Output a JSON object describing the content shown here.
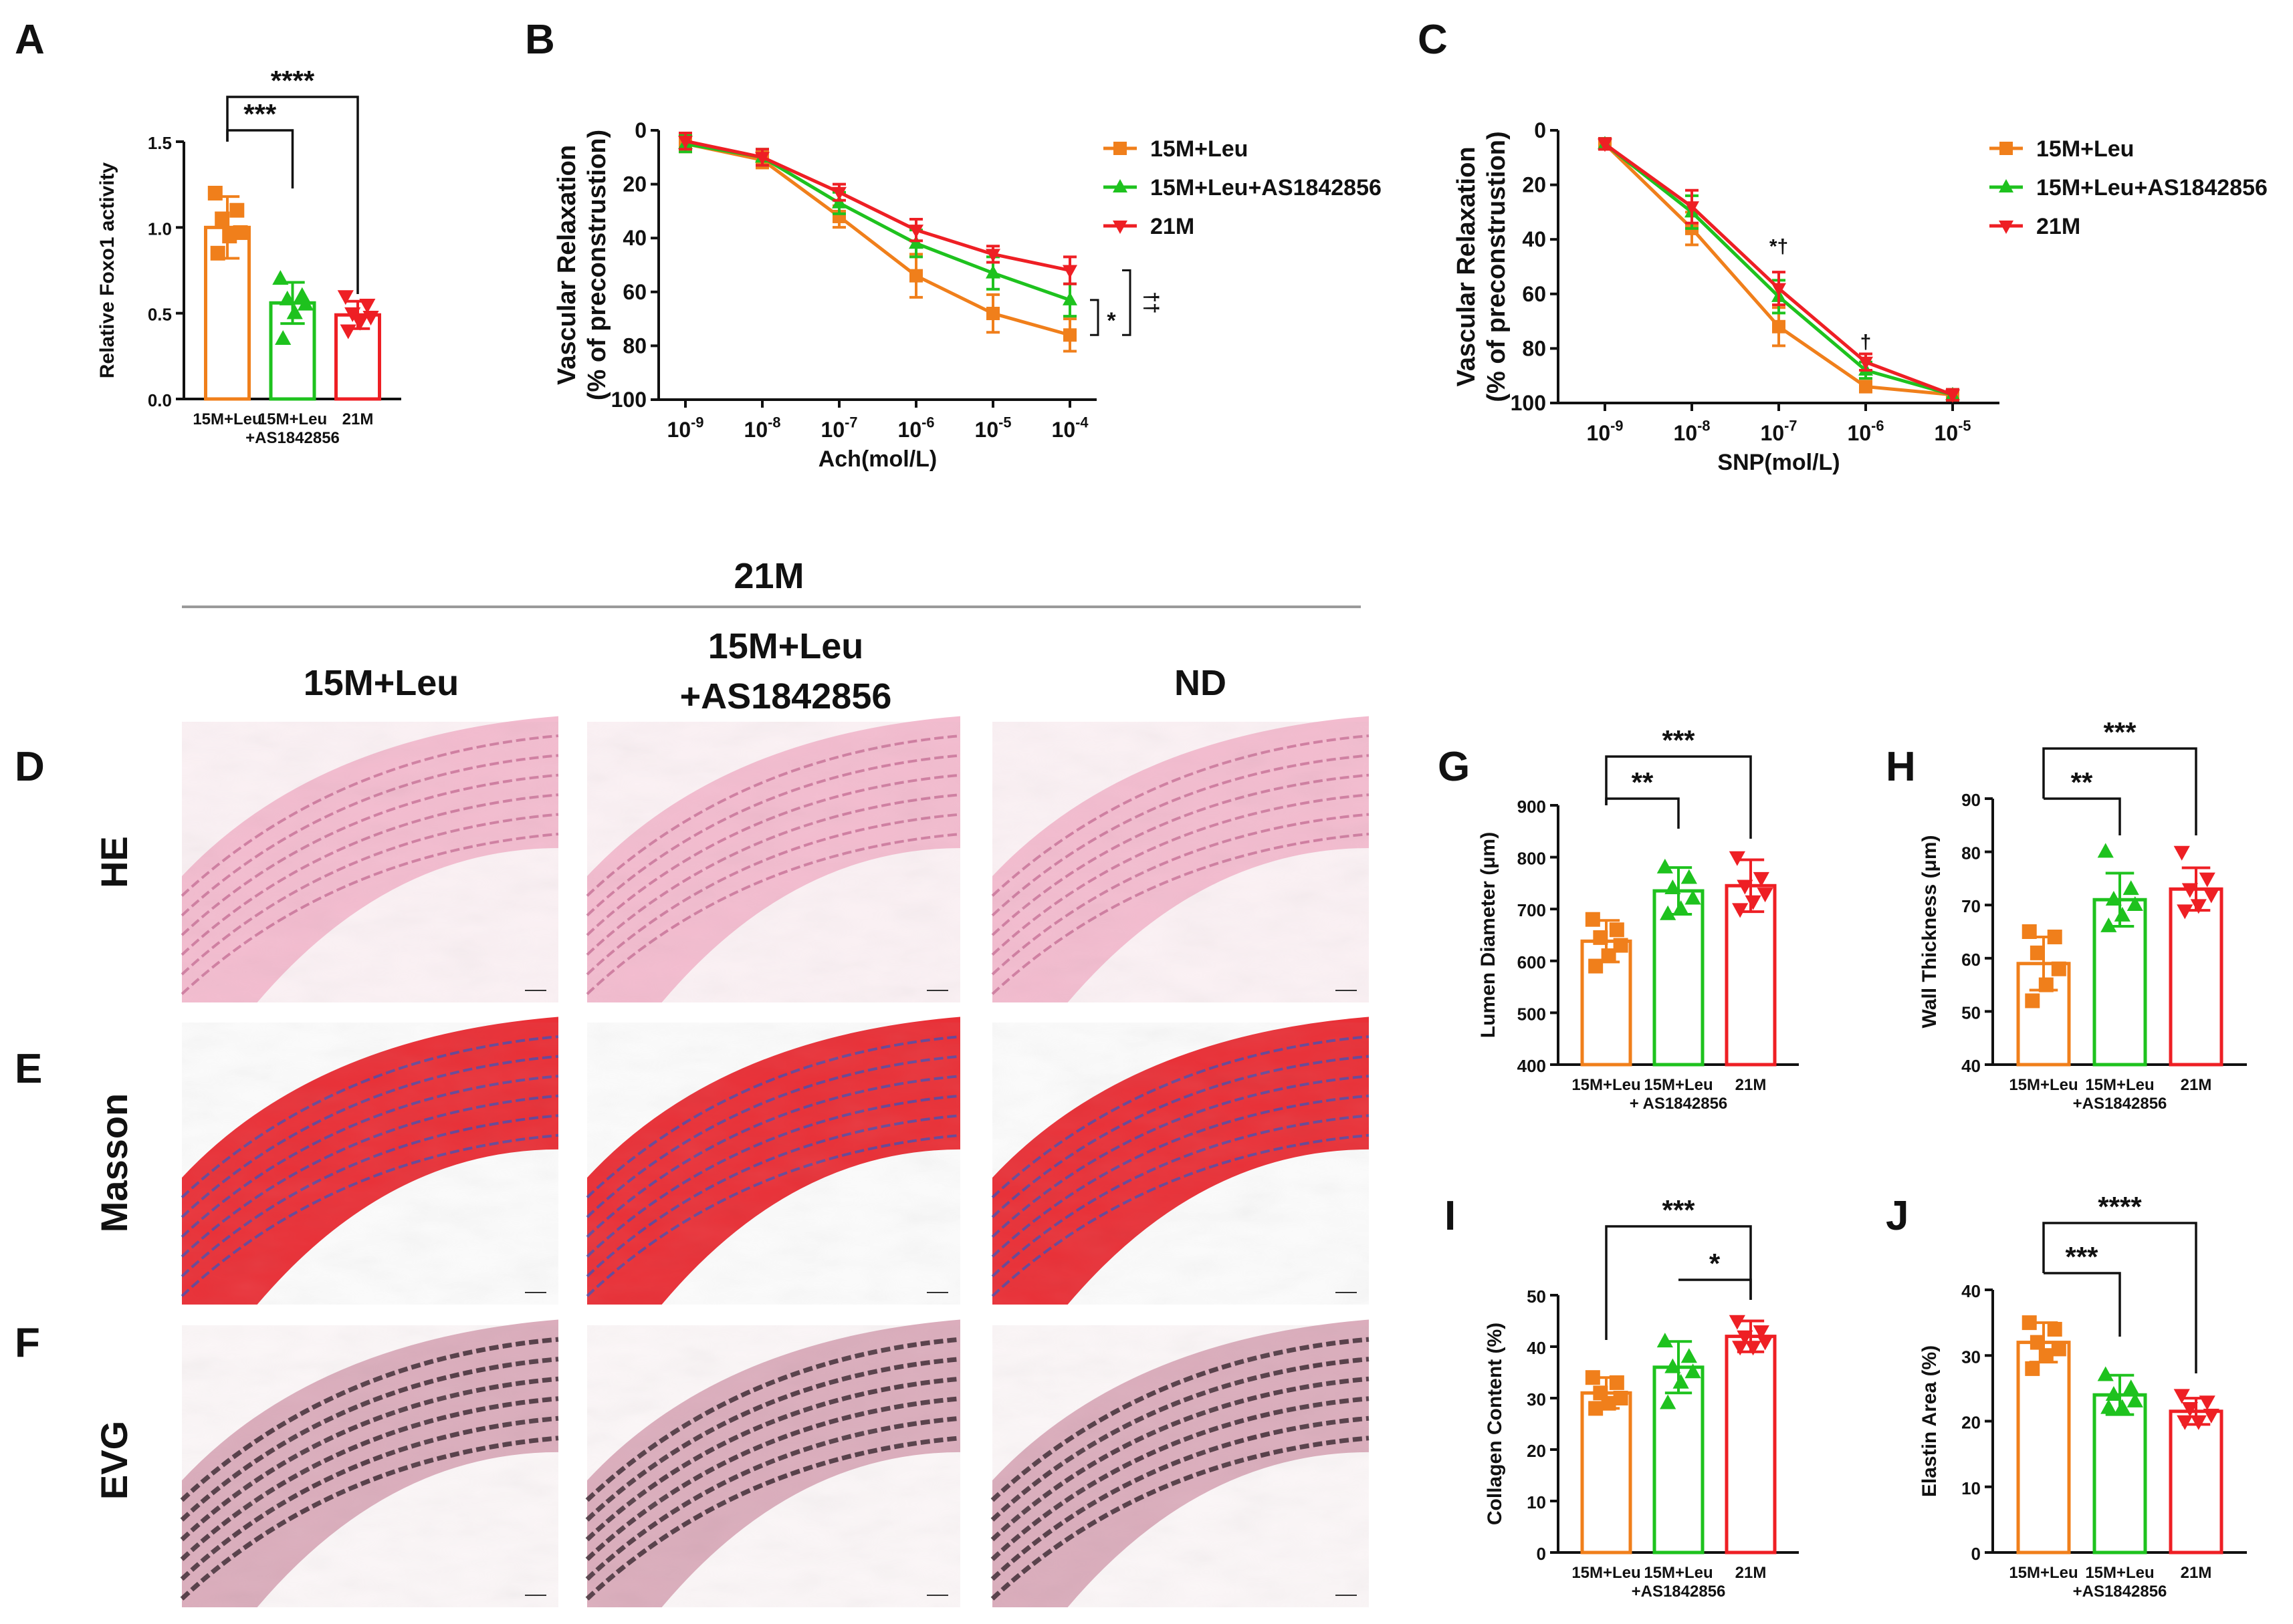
{
  "colors": {
    "orange": "#F07F1B",
    "green": "#1EC21E",
    "red": "#EE1F24",
    "axis": "#111111",
    "gray": "#9a9a9a"
  },
  "panels": {
    "A": "A",
    "B": "B",
    "C": "C",
    "D": "D",
    "E": "E",
    "F": "F",
    "G": "G",
    "H": "H",
    "I": "I",
    "J": "J"
  },
  "histology": {
    "group_header": "21M",
    "col1": "15M+Leu",
    "col2_line1": "15M+Leu",
    "col2_line2": "+AS1842856",
    "col3": "ND",
    "row1": "HE",
    "row2": "Masson",
    "row3": "EVG"
  },
  "chart_data": [
    {
      "id": "A",
      "type": "bar",
      "ylabel": "Relative Foxo1 activity",
      "ylim": [
        0,
        1.5
      ],
      "yticks": [
        "0.0",
        "0.5",
        "1.0",
        "1.5"
      ],
      "categories": [
        "15M+Leu",
        "15M+Leu",
        "21M"
      ],
      "category_sub": [
        "",
        "+AS1842856",
        ""
      ],
      "values": [
        1.0,
        0.56,
        0.49
      ],
      "errors": [
        0.18,
        0.12,
        0.08
      ],
      "points": [
        [
          1.2,
          1.1,
          1.05,
          0.97,
          0.95,
          0.85
        ],
        [
          0.7,
          0.6,
          0.58,
          0.55,
          0.5,
          0.35
        ],
        [
          0.6,
          0.55,
          0.5,
          0.48,
          0.45,
          0.4
        ]
      ],
      "markers": [
        "square",
        "triangle",
        "inv-triangle"
      ],
      "significance": [
        {
          "from": 0,
          "to": 1,
          "label": "***"
        },
        {
          "from": 0,
          "to": 2,
          "label": "****"
        }
      ]
    },
    {
      "id": "B",
      "type": "line",
      "xlabel": "Ach(mol/L)",
      "ylabel_line1": "Vascular Relaxation",
      "ylabel_line2": "(% of preconstrustion)",
      "ylim": [
        0,
        100
      ],
      "yticks": [
        "0",
        "20",
        "40",
        "60",
        "80",
        "100"
      ],
      "x": [
        "10-9",
        "10-8",
        "10-7",
        "10-6",
        "10-5",
        "10-4"
      ],
      "x_exp": [
        "-9",
        "-8",
        "-7",
        "-6",
        "-5",
        "-4"
      ],
      "series": [
        {
          "name": "15M+Leu",
          "values": [
            5,
            11,
            32,
            54,
            68,
            76
          ],
          "errors": [
            3,
            3,
            4,
            8,
            7,
            6
          ]
        },
        {
          "name": "15M+Leu+AS1842856",
          "values": [
            5,
            10,
            27,
            42,
            53,
            63
          ],
          "errors": [
            3,
            3,
            4,
            5,
            6,
            6
          ]
        },
        {
          "name": "21M",
          "values": [
            4,
            10,
            23,
            37,
            46,
            52
          ],
          "errors": [
            3,
            3,
            3,
            4,
            3,
            5
          ]
        }
      ],
      "annotations": [
        "*",
        "††"
      ]
    },
    {
      "id": "C",
      "type": "line",
      "xlabel": "SNP(mol/L)",
      "ylabel_line1": "Vascular Relaxation",
      "ylabel_line2": "(% of preconstrustion)",
      "ylim": [
        0,
        100
      ],
      "yticks": [
        "0",
        "20",
        "40",
        "60",
        "80",
        "100"
      ],
      "x": [
        "10-9",
        "10-8",
        "10-7",
        "10-6",
        "10-5"
      ],
      "x_exp": [
        "-9",
        "-8",
        "-7",
        "-6",
        "-5"
      ],
      "series": [
        {
          "name": "15M+Leu",
          "values": [
            5,
            36,
            72,
            94,
            97
          ],
          "errors": [
            2,
            6,
            7,
            2,
            2
          ]
        },
        {
          "name": "15M+Leu+AS1842856",
          "values": [
            5,
            30,
            61,
            88,
            97
          ],
          "errors": [
            2,
            6,
            6,
            3,
            2
          ]
        },
        {
          "name": "21M",
          "values": [
            5,
            28,
            58,
            85,
            97
          ],
          "errors": [
            2,
            6,
            6,
            3,
            2
          ]
        }
      ],
      "annotations": [
        "*†",
        "†"
      ]
    },
    {
      "id": "G",
      "type": "bar",
      "ylabel": "Lumen Diameter (μm)",
      "ylim": [
        400,
        900
      ],
      "yticks": [
        "400",
        "500",
        "600",
        "700",
        "800",
        "900"
      ],
      "categories": [
        "15M+Leu",
        "15M+Leu",
        "21M"
      ],
      "category_sub": [
        "",
        "+ AS1842856",
        ""
      ],
      "values": [
        638,
        735,
        745
      ],
      "errors": [
        40,
        45,
        50
      ],
      "points": [
        [
          680,
          660,
          645,
          630,
          610,
          590
        ],
        [
          780,
          760,
          740,
          720,
          700,
          690
        ],
        [
          800,
          760,
          745,
          730,
          715,
          700
        ]
      ],
      "markers": [
        "square",
        "triangle",
        "inv-triangle"
      ],
      "significance": [
        {
          "from": 0,
          "to": 1,
          "label": "**"
        },
        {
          "from": 0,
          "to": 2,
          "label": "***"
        }
      ]
    },
    {
      "id": "H",
      "type": "bar",
      "ylabel": "Wall Thickness (μm)",
      "ylim": [
        40,
        90
      ],
      "yticks": [
        "40",
        "50",
        "60",
        "70",
        "80",
        "90"
      ],
      "categories": [
        "15M+Leu",
        "15M+Leu",
        "21M"
      ],
      "category_sub": [
        "",
        "+AS1842856",
        ""
      ],
      "values": [
        59,
        71,
        73
      ],
      "errors": [
        5,
        5,
        4
      ],
      "points": [
        [
          65,
          64,
          61,
          58,
          55,
          52
        ],
        [
          80,
          73,
          71,
          70,
          68,
          66
        ],
        [
          80,
          75,
          73,
          72,
          70,
          69
        ]
      ],
      "markers": [
        "square",
        "triangle",
        "inv-triangle"
      ],
      "significance": [
        {
          "from": 0,
          "to": 1,
          "label": "**"
        },
        {
          "from": 0,
          "to": 2,
          "label": "***"
        }
      ]
    },
    {
      "id": "I",
      "type": "bar",
      "ylabel": "Collagen Content (%)",
      "ylim": [
        0,
        50
      ],
      "yticks": [
        "0",
        "10",
        "20",
        "30",
        "40",
        "50"
      ],
      "categories": [
        "15M+Leu",
        "15M+Leu",
        "21M"
      ],
      "category_sub": [
        "",
        "+AS1842856",
        ""
      ],
      "values": [
        31,
        36,
        42
      ],
      "errors": [
        3,
        5,
        3
      ],
      "points": [
        [
          34,
          33,
          31,
          30,
          29,
          28
        ],
        [
          41,
          38,
          36,
          35,
          33,
          29
        ],
        [
          45,
          43,
          42,
          41,
          40,
          40
        ]
      ],
      "markers": [
        "square",
        "triangle",
        "inv-triangle"
      ],
      "significance": [
        {
          "from": 1,
          "to": 2,
          "label": "*"
        },
        {
          "from": 0,
          "to": 2,
          "label": "***"
        }
      ]
    },
    {
      "id": "J",
      "type": "bar",
      "ylabel": "Elastin Area (%)",
      "ylim": [
        0,
        40
      ],
      "yticks": [
        "0",
        "10",
        "20",
        "30",
        "40"
      ],
      "categories": [
        "15M+Leu",
        "15M+Leu",
        "21M"
      ],
      "category_sub": [
        "",
        "+AS1842856",
        ""
      ],
      "values": [
        32,
        24,
        21.5
      ],
      "errors": [
        3,
        3,
        2
      ],
      "points": [
        [
          35,
          34,
          32,
          31,
          30,
          28
        ],
        [
          27,
          25,
          24,
          23,
          22,
          22
        ],
        [
          24,
          23,
          22,
          21,
          20,
          20
        ]
      ],
      "markers": [
        "square",
        "triangle",
        "inv-triangle"
      ],
      "significance": [
        {
          "from": 0,
          "to": 1,
          "label": "***"
        },
        {
          "from": 0,
          "to": 2,
          "label": "****"
        }
      ]
    }
  ]
}
